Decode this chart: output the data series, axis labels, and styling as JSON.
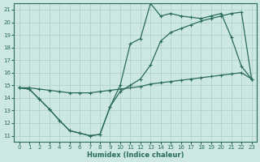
{
  "xlabel": "Humidex (Indice chaleur)",
  "bg_color": "#cce8e0",
  "grid_color": "#aacfc8",
  "line_color": "#2a6b5a",
  "xlim": [
    -0.5,
    23.5
  ],
  "ylim": [
    10.5,
    21.5
  ],
  "xticks": [
    0,
    1,
    2,
    3,
    4,
    5,
    6,
    7,
    8,
    9,
    10,
    11,
    12,
    13,
    14,
    15,
    16,
    17,
    18,
    19,
    20,
    21,
    22,
    23
  ],
  "yticks": [
    11,
    12,
    13,
    14,
    15,
    16,
    17,
    18,
    19,
    20,
    21
  ],
  "line_flat_x": [
    0,
    1,
    2,
    3,
    4,
    5,
    6,
    7,
    8,
    9,
    10,
    11,
    12,
    13,
    14,
    15,
    16,
    17,
    18,
    19,
    20,
    21,
    22,
    23
  ],
  "line_flat_y": [
    14.8,
    14.8,
    14.7,
    14.6,
    14.5,
    14.4,
    14.4,
    14.4,
    14.5,
    14.6,
    14.7,
    14.8,
    14.9,
    15.1,
    15.2,
    15.3,
    15.4,
    15.5,
    15.6,
    15.7,
    15.8,
    15.9,
    16.0,
    15.5
  ],
  "line_mid_x": [
    0,
    1,
    2,
    3,
    4,
    5,
    6,
    7,
    8,
    9,
    10,
    11,
    12,
    13,
    14,
    15,
    16,
    17,
    18,
    19,
    20,
    21,
    22,
    23
  ],
  "line_mid_y": [
    14.8,
    14.7,
    13.9,
    13.1,
    12.2,
    11.4,
    11.2,
    11.0,
    11.1,
    13.3,
    14.5,
    15.0,
    15.5,
    16.6,
    18.5,
    19.2,
    19.5,
    19.8,
    20.1,
    20.3,
    20.5,
    20.7,
    20.8,
    15.5
  ],
  "line_peak_x": [
    0,
    1,
    2,
    3,
    4,
    5,
    6,
    7,
    8,
    9,
    10,
    11,
    12,
    13,
    14,
    15,
    16,
    17,
    18,
    19,
    20,
    21,
    22,
    23
  ],
  "line_peak_y": [
    14.8,
    14.7,
    13.9,
    13.1,
    12.2,
    11.4,
    11.2,
    11.0,
    11.1,
    13.3,
    15.0,
    18.3,
    18.7,
    21.5,
    20.5,
    20.7,
    20.5,
    20.4,
    20.3,
    20.5,
    20.7,
    18.8,
    16.5,
    15.5
  ]
}
